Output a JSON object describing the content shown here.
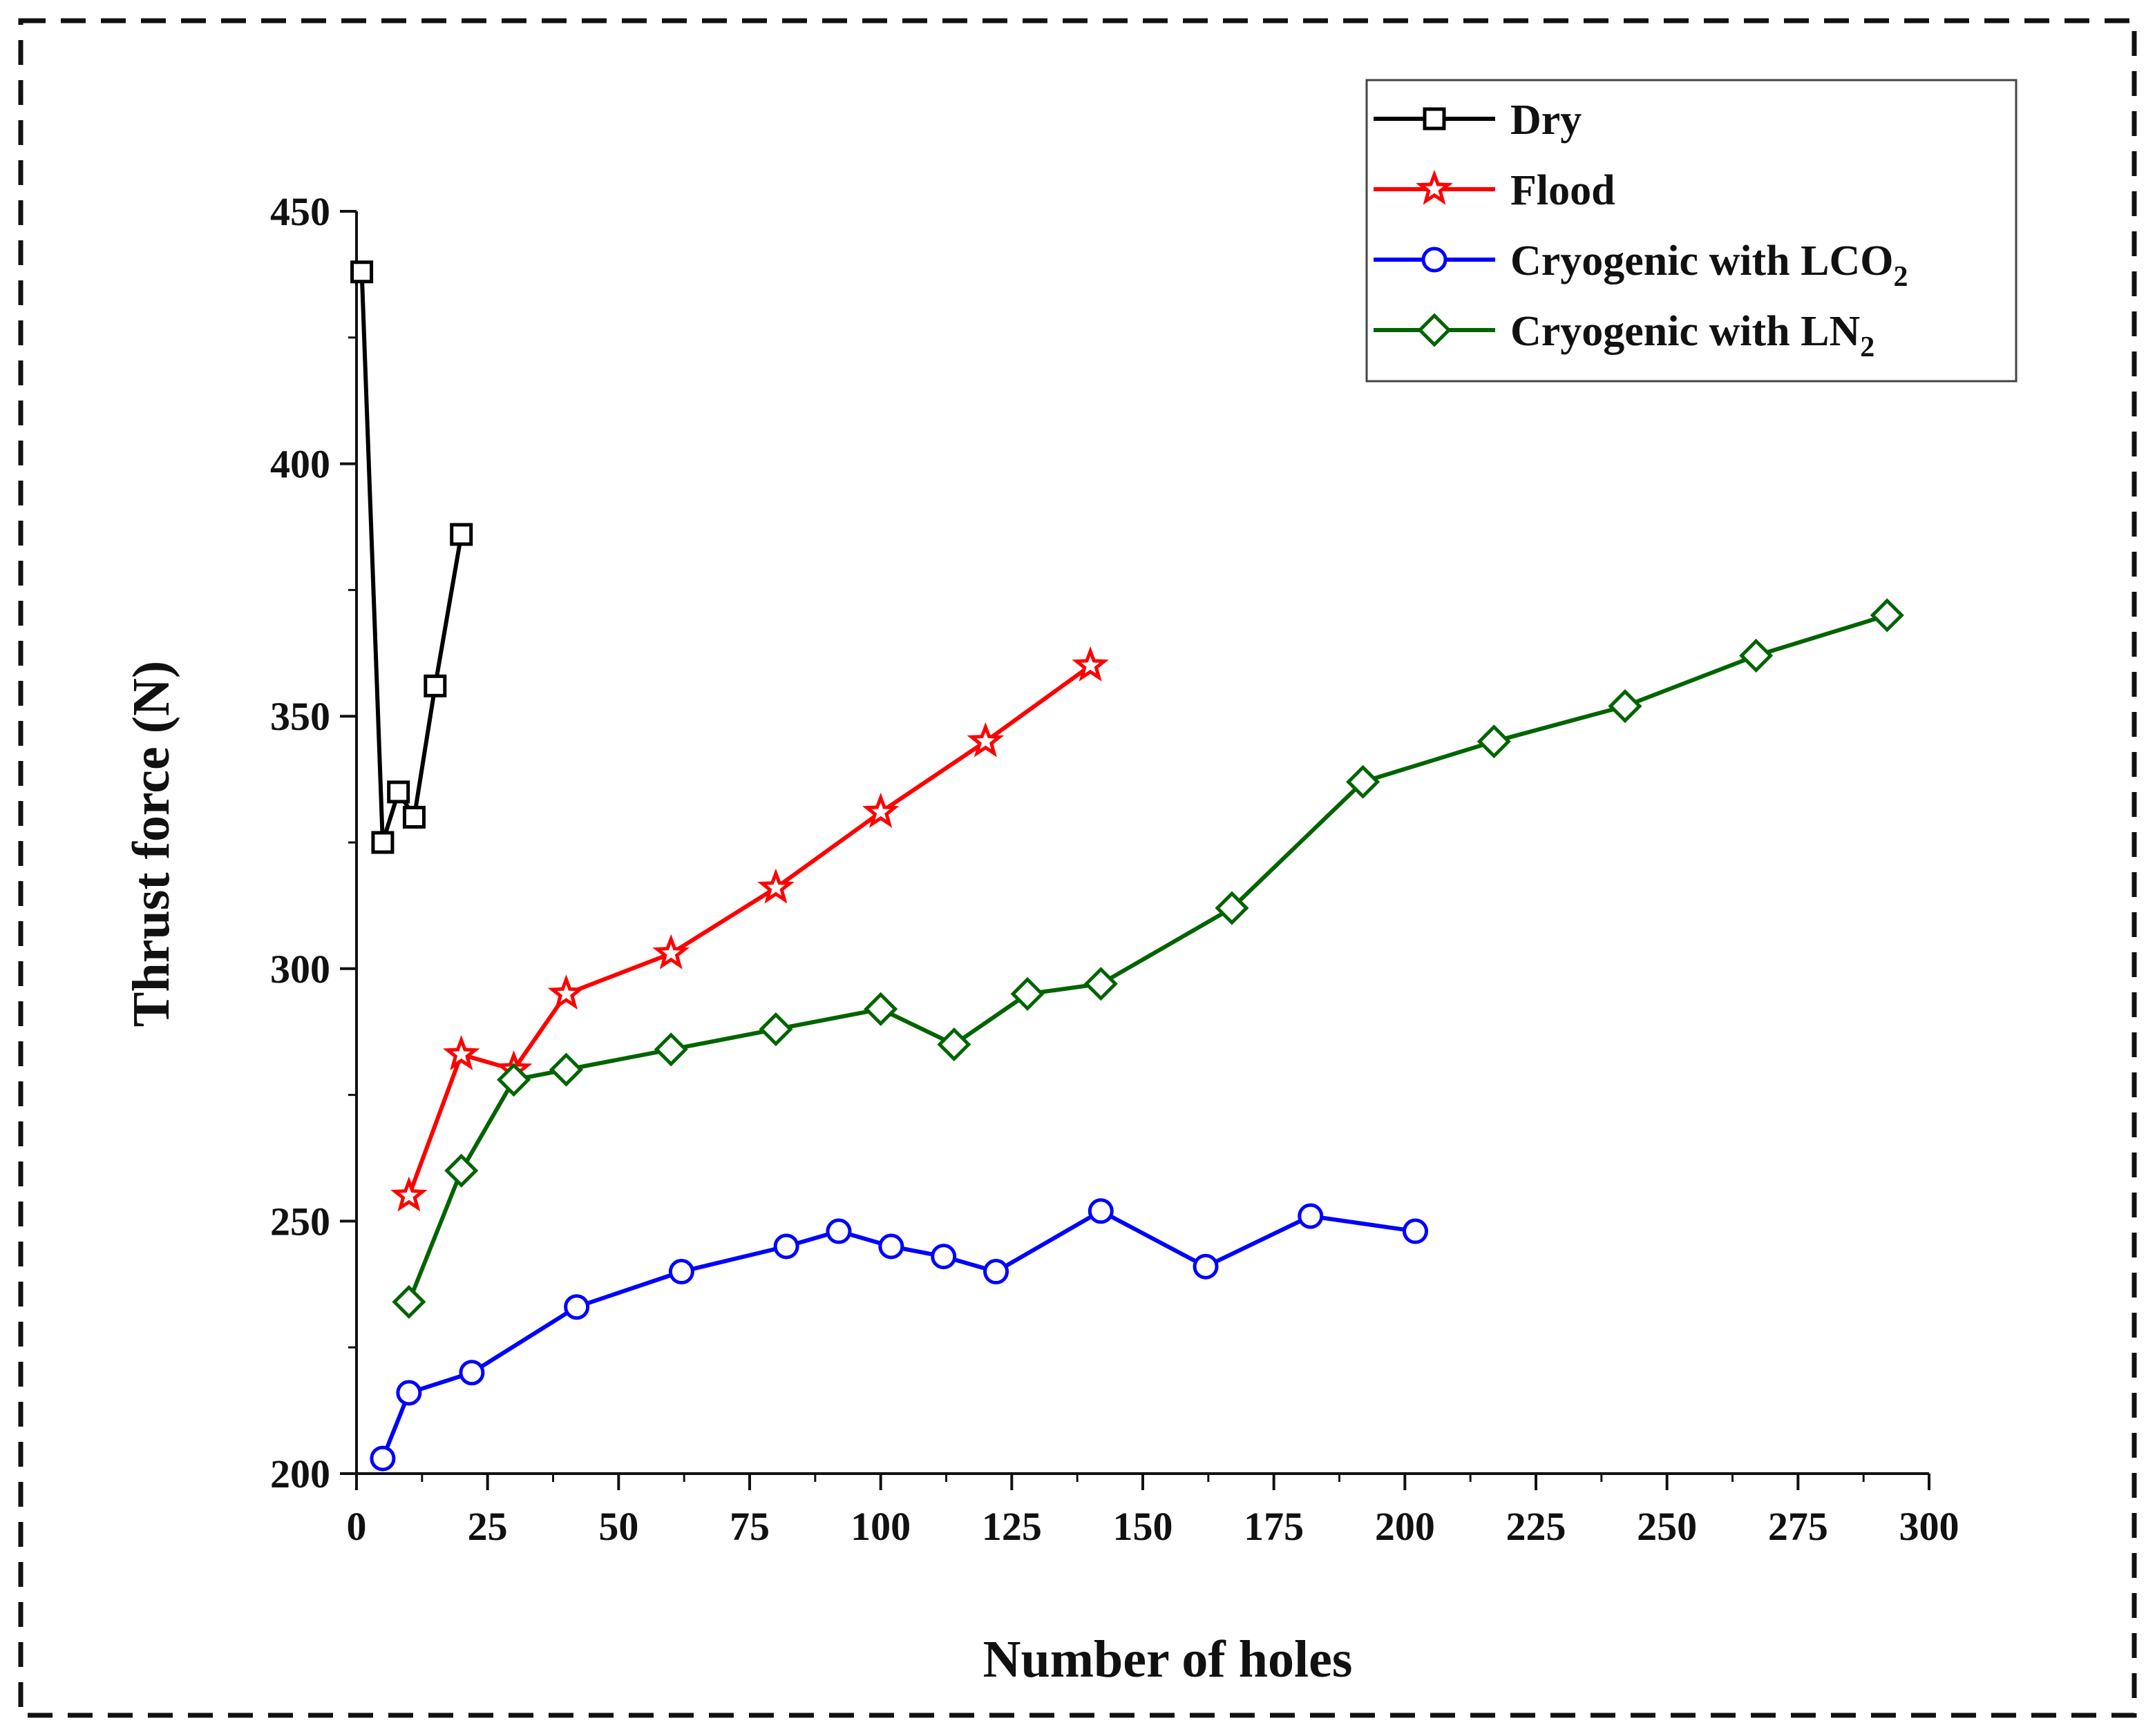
{
  "chart_data": {
    "type": "line",
    "title": "",
    "xlabel": "Number of holes",
    "ylabel": "Thrust force (N)",
    "xlim": [
      0,
      300
    ],
    "ylim": [
      200,
      450
    ],
    "x_ticks": [
      0,
      25,
      50,
      75,
      100,
      125,
      150,
      175,
      200,
      225,
      250,
      275,
      300
    ],
    "y_ticks": [
      200,
      250,
      300,
      350,
      400,
      450
    ],
    "legend_position": "top-right",
    "series": [
      {
        "name": "Dry",
        "color": "#000000",
        "marker": "square",
        "points": [
          [
            1,
            438
          ],
          [
            5,
            325
          ],
          [
            8,
            335
          ],
          [
            11,
            330
          ],
          [
            15,
            356
          ],
          [
            20,
            386
          ]
        ]
      },
      {
        "name": "Flood",
        "color": "#ff0000",
        "marker": "star",
        "points": [
          [
            10,
            255
          ],
          [
            20,
            283
          ],
          [
            30,
            280
          ],
          [
            40,
            295
          ],
          [
            60,
            303
          ],
          [
            80,
            316
          ],
          [
            100,
            331
          ],
          [
            120,
            345
          ],
          [
            140,
            360
          ]
        ]
      },
      {
        "name": "Cryogenic with LCO",
        "name_subscript": "2",
        "color": "#0000ff",
        "marker": "circle",
        "points": [
          [
            5,
            203
          ],
          [
            10,
            216
          ],
          [
            22,
            220
          ],
          [
            42,
            233
          ],
          [
            62,
            240
          ],
          [
            82,
            245
          ],
          [
            92,
            248
          ],
          [
            102,
            245
          ],
          [
            112,
            243
          ],
          [
            122,
            240
          ],
          [
            142,
            252
          ],
          [
            162,
            241
          ],
          [
            182,
            251
          ],
          [
            202,
            248
          ]
        ]
      },
      {
        "name": "Cryogenic with LN",
        "name_subscript": "2",
        "color": "#006400",
        "marker": "diamond",
        "points": [
          [
            10,
            234
          ],
          [
            20,
            260
          ],
          [
            30,
            278
          ],
          [
            40,
            280
          ],
          [
            60,
            284
          ],
          [
            80,
            288
          ],
          [
            100,
            292
          ],
          [
            114,
            285
          ],
          [
            128,
            295
          ],
          [
            142,
            297
          ],
          [
            167,
            312
          ],
          [
            192,
            337
          ],
          [
            217,
            345
          ],
          [
            242,
            352
          ],
          [
            267,
            362
          ],
          [
            292,
            370
          ]
        ]
      }
    ]
  }
}
